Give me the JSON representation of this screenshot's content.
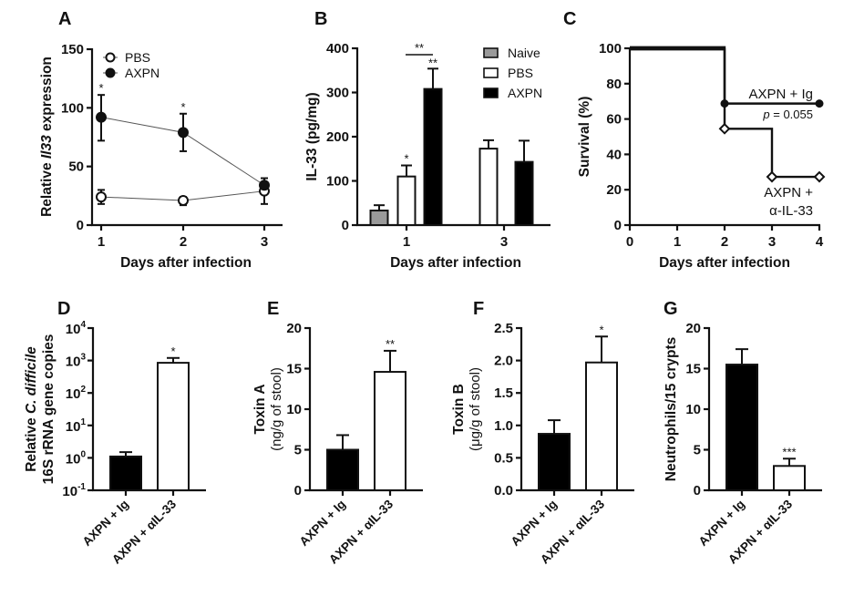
{
  "figure": {
    "panels": [
      "A",
      "B",
      "C",
      "D",
      "E",
      "F",
      "G"
    ]
  },
  "chart_data": [
    {
      "panel": "A",
      "type": "line",
      "title": "",
      "xlabel": "Days after infection",
      "ylabel_parts": [
        "Relative ",
        "Il33",
        " expression"
      ],
      "ylabel": "Relative Il33 expression",
      "x": [
        1,
        2,
        3
      ],
      "x_ticks": [
        "1",
        "2",
        "3"
      ],
      "ylim": [
        0,
        150
      ],
      "y_ticks": [
        0,
        50,
        100,
        150
      ],
      "legend": "top-left",
      "series": [
        {
          "name": "PBS",
          "marker": "open-circle",
          "values": [
            24,
            21,
            29
          ],
          "err_upper": [
            30,
            24,
            36
          ],
          "err_lower": [
            18,
            17,
            18
          ]
        },
        {
          "name": "AXPN",
          "marker": "filled-circle",
          "values": [
            92,
            79,
            34
          ],
          "err_upper": [
            111,
            95,
            40
          ],
          "err_lower": [
            72,
            63,
            28
          ]
        }
      ],
      "annotations": [
        {
          "x": 1,
          "text": "*"
        },
        {
          "x": 2,
          "text": "*"
        }
      ]
    },
    {
      "panel": "B",
      "type": "bar",
      "title": "",
      "xlabel": "Days after infection",
      "ylabel": "IL-33 (pg/mg)",
      "categories": [
        "1",
        "3"
      ],
      "ylim": [
        0,
        400
      ],
      "y_ticks": [
        0,
        100,
        200,
        300,
        400
      ],
      "legend": "top-right",
      "series": [
        {
          "name": "Naive",
          "color": "#9a9a9a",
          "values": [
            33,
            null
          ],
          "err": [
            45,
            null
          ]
        },
        {
          "name": "PBS",
          "color": "#ffffff",
          "values": [
            110,
            173
          ],
          "err": [
            135,
            192
          ]
        },
        {
          "name": "AXPN",
          "color": "#000000",
          "values": [
            308,
            143
          ],
          "err": [
            354,
            191
          ]
        }
      ],
      "annotations": [
        {
          "target": "PBS day 1",
          "text": "*"
        },
        {
          "target": "AXPN day 1",
          "text": "**"
        },
        {
          "target": "PBS vs AXPN day 1 bracket",
          "text": "**"
        }
      ]
    },
    {
      "panel": "C",
      "type": "line",
      "subtype": "survival-step",
      "title": "",
      "xlabel": "Days after infection",
      "ylabel": "Survival (%)",
      "xlim": [
        0,
        4
      ],
      "x_ticks": [
        "0",
        "1",
        "2",
        "3",
        "4"
      ],
      "ylim": [
        0,
        100
      ],
      "y_ticks": [
        0,
        20,
        40,
        60,
        80,
        100
      ],
      "series": [
        {
          "name": "AXPN + Ig",
          "marker": "filled-circle",
          "steps": [
            [
              0,
              100
            ],
            [
              2,
              100
            ],
            [
              2,
              68.75
            ],
            [
              4,
              68.75
            ]
          ],
          "markers": [
            [
              2,
              68.75
            ],
            [
              4,
              68.75
            ]
          ]
        },
        {
          "name": "AXPN + α-IL-33",
          "marker": "open-diamond",
          "steps": [
            [
              0,
              100
            ],
            [
              2,
              100
            ],
            [
              2,
              54.5
            ],
            [
              3,
              54.5
            ],
            [
              3,
              27.3
            ],
            [
              4,
              27.3
            ]
          ],
          "markers": [
            [
              2,
              54.5
            ],
            [
              3,
              27.3
            ],
            [
              4,
              27.3
            ]
          ]
        }
      ],
      "labels": {
        "ig": "AXPN + Ig",
        "pvalue_p": "p",
        "pvalue_rest": " = 0.055",
        "anti_line1": "AXPN +",
        "anti_line2": "α-IL-33"
      }
    },
    {
      "panel": "D",
      "type": "bar",
      "title": "",
      "xlabel": "",
      "ylabel_line1_parts": [
        "Relative ",
        "C. difficile"
      ],
      "ylabel_line2": "16S rRNA gene copies",
      "yscale": "log",
      "ylim": [
        0.1,
        10000
      ],
      "y_ticks": [
        {
          "base": "10",
          "exp": "-1"
        },
        {
          "base": "10",
          "exp": "0"
        },
        {
          "base": "10",
          "exp": "1"
        },
        {
          "base": "10",
          "exp": "2"
        },
        {
          "base": "10",
          "exp": "3"
        },
        {
          "base": "10",
          "exp": "4"
        }
      ],
      "categories": [
        "AXPN + Ig",
        "AXPN + αIL-33"
      ],
      "colors": [
        "#000000",
        "#ffffff"
      ],
      "values": [
        1.1,
        850
      ],
      "err": [
        1.5,
        1200
      ],
      "annotations": [
        {
          "category": "AXPN + αIL-33",
          "text": "*"
        }
      ]
    },
    {
      "panel": "E",
      "type": "bar",
      "title": "",
      "ylabel_line1": "Toxin A",
      "ylabel_line2": "(ng/g of stool)",
      "ylim": [
        0,
        20
      ],
      "y_ticks": [
        0,
        5,
        10,
        15,
        20
      ],
      "categories": [
        "AXPN + Ig",
        "AXPN + αIL-33"
      ],
      "colors": [
        "#000000",
        "#ffffff"
      ],
      "values": [
        5.0,
        14.6
      ],
      "err": [
        6.8,
        17.2
      ],
      "annotations": [
        {
          "category": "AXPN + αIL-33",
          "text": "**"
        }
      ]
    },
    {
      "panel": "F",
      "type": "bar",
      "title": "",
      "ylabel_line1": "Toxin B",
      "ylabel_line2": "(μg/g of stool)",
      "ylim": [
        0,
        2.5
      ],
      "y_ticks": [
        "0.0",
        "0.5",
        "1.0",
        "1.5",
        "2.0",
        "2.5"
      ],
      "categories": [
        "AXPN + Ig",
        "AXPN + αIL-33"
      ],
      "colors": [
        "#000000",
        "#ffffff"
      ],
      "values": [
        0.87,
        1.97
      ],
      "err": [
        1.08,
        2.37
      ],
      "annotations": [
        {
          "category": "AXPN + αIL-33",
          "text": "*"
        }
      ]
    },
    {
      "panel": "G",
      "type": "bar",
      "title": "",
      "ylabel": "Neutrophils/15 crypts",
      "ylim": [
        0,
        20
      ],
      "y_ticks": [
        0,
        5,
        10,
        15,
        20
      ],
      "categories": [
        "AXPN + Ig",
        "AXPN + αIL-33"
      ],
      "colors": [
        "#000000",
        "#ffffff"
      ],
      "values": [
        15.5,
        3.0
      ],
      "err": [
        17.4,
        3.9
      ],
      "annotations": [
        {
          "category": "AXPN + αIL-33",
          "text": "***"
        }
      ]
    }
  ]
}
